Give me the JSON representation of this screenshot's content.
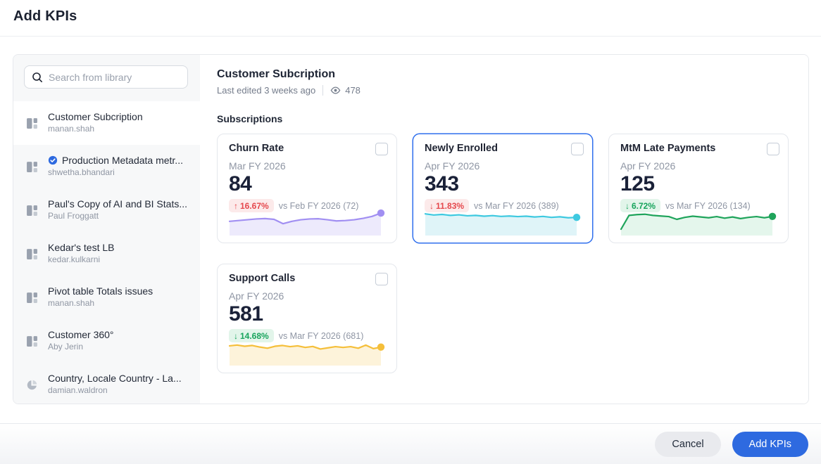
{
  "header": {
    "title": "Add KPIs"
  },
  "sidebar": {
    "search_placeholder": "Search from library",
    "items": [
      {
        "title": "Customer Subcription",
        "owner": "manan.shah",
        "icon": "dashboard",
        "selected": true,
        "verified": false
      },
      {
        "title": "Production Metadata metr...",
        "owner": "shwetha.bhandari",
        "icon": "dashboard",
        "selected": false,
        "verified": true
      },
      {
        "title": "Paul's Copy of AI and BI Stats...",
        "owner": "Paul Froggatt",
        "icon": "dashboard",
        "selected": false,
        "verified": false
      },
      {
        "title": "Kedar's test LB",
        "owner": "kedar.kulkarni",
        "icon": "dashboard",
        "selected": false,
        "verified": false
      },
      {
        "title": "Pivot table Totals issues",
        "owner": "manan.shah",
        "icon": "dashboard",
        "selected": false,
        "verified": false
      },
      {
        "title": "Customer 360°",
        "owner": "Aby Jerin",
        "icon": "dashboard",
        "selected": false,
        "verified": false
      },
      {
        "title": "Country, Locale Country - La...",
        "owner": "damian.waldron",
        "icon": "pie",
        "selected": false,
        "verified": false
      }
    ]
  },
  "content": {
    "title": "Customer Subcription",
    "last_edited": "Last edited 3 weeks ago",
    "views": "478",
    "section": "Subscriptions",
    "cards": [
      {
        "title": "Churn Rate",
        "period": "Mar FY 2026",
        "value": "84",
        "delta_arrow": "↑",
        "delta": "16.67%",
        "delta_color": "red",
        "comparison": "vs Feb FY 2026 (72)",
        "selected": false,
        "checked": false,
        "spark_color": "#a18ff2",
        "spark_fill": "#edeafc",
        "spark_points": [
          0.6,
          0.56,
          0.52,
          0.48,
          0.46,
          0.5,
          0.72,
          0.6,
          0.52,
          0.48,
          0.47,
          0.52,
          0.58,
          0.56,
          0.52,
          0.45,
          0.35,
          0.18
        ]
      },
      {
        "title": "Newly Enrolled",
        "period": "Apr FY 2026",
        "value": "343",
        "delta_arrow": "↓",
        "delta": "11.83%",
        "delta_color": "red",
        "comparison": "vs Mar FY 2026 (389)",
        "selected": true,
        "checked": false,
        "spark_color": "#3ec9e0",
        "spark_fill": "#dff4f8",
        "spark_points": [
          0.22,
          0.28,
          0.25,
          0.3,
          0.27,
          0.32,
          0.3,
          0.34,
          0.31,
          0.35,
          0.33,
          0.36,
          0.34,
          0.38,
          0.35,
          0.4,
          0.37,
          0.42,
          0.4
        ]
      },
      {
        "title": "MtM Late Payments",
        "period": "Apr FY 2026",
        "value": "125",
        "delta_arrow": "↓",
        "delta": "6.72%",
        "delta_color": "green",
        "comparison": "vs Mar FY 2026 (134)",
        "selected": false,
        "checked": false,
        "spark_color": "#1fa45b",
        "spark_fill": "#e4f6ec",
        "spark_points": [
          1.0,
          0.3,
          0.26,
          0.24,
          0.3,
          0.33,
          0.36,
          0.5,
          0.4,
          0.34,
          0.38,
          0.42,
          0.36,
          0.44,
          0.38,
          0.46,
          0.4,
          0.36,
          0.42,
          0.35
        ]
      },
      {
        "title": "Support Calls",
        "period": "Apr FY 2026",
        "value": "581",
        "delta_arrow": "↓",
        "delta": "14.68%",
        "delta_color": "green",
        "comparison": "vs Mar FY 2026 (681)",
        "selected": false,
        "checked": false,
        "spark_color": "#f5bf3a",
        "spark_fill": "#fdf3da",
        "spark_points": [
          0.32,
          0.28,
          0.34,
          0.3,
          0.38,
          0.44,
          0.34,
          0.3,
          0.36,
          0.32,
          0.4,
          0.35,
          0.48,
          0.42,
          0.36,
          0.4,
          0.36,
          0.44,
          0.28,
          0.46,
          0.38
        ]
      }
    ]
  },
  "footer": {
    "cancel_label": "Cancel",
    "add_label": "Add KPIs"
  },
  "colors": {
    "accent_blue": "#2e6ae0",
    "badge_red_bg": "#fceaea",
    "badge_red_text": "#e5484d",
    "badge_green_bg": "#e2f5ea",
    "badge_green_text": "#17a45c",
    "sidebar_bg": "#f7f8f9",
    "panel_border": "#e7e9ed"
  }
}
